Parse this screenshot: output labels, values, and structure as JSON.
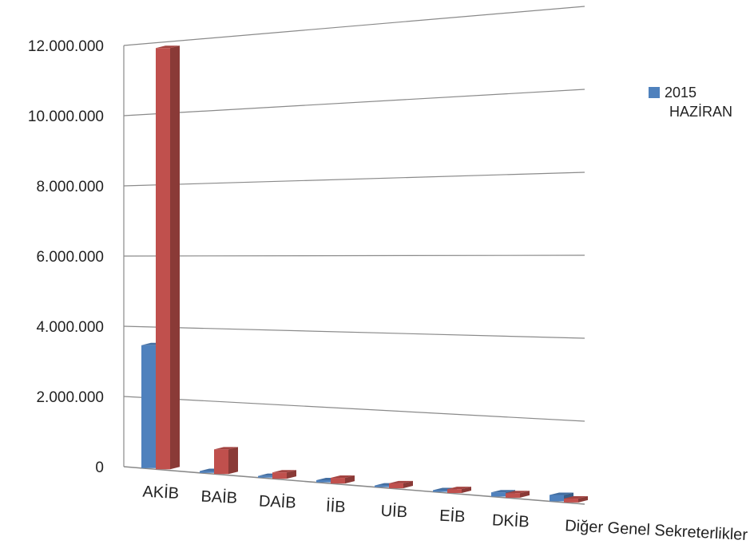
{
  "chart_data": {
    "type": "bar",
    "categories": [
      "AKİB",
      "BAİB",
      "DAİB",
      "İİB",
      "UİB",
      "EİB",
      "DKİB",
      "Diğer Genel Sekreterlikler"
    ],
    "series": [
      {
        "name": "2015 HAZİRAN",
        "color": "#4F81BD",
        "values": [
          3500000,
          50000,
          20000,
          60000,
          5000,
          5000,
          120000,
          180000
        ]
      },
      {
        "name": "",
        "color": "#C0504D",
        "values": [
          12000000,
          700000,
          180000,
          160000,
          140000,
          110000,
          130000,
          110000
        ]
      }
    ],
    "yticks": [
      "0",
      "2.000.000",
      "4.000.000",
      "6.000.000",
      "8.000.000",
      "10.000.000",
      "12.000.000"
    ],
    "ylim": [
      0,
      12000000
    ],
    "grid": true,
    "legend_position": "right"
  },
  "legend": {
    "line1": "2015",
    "line2": "HAZİRAN"
  }
}
